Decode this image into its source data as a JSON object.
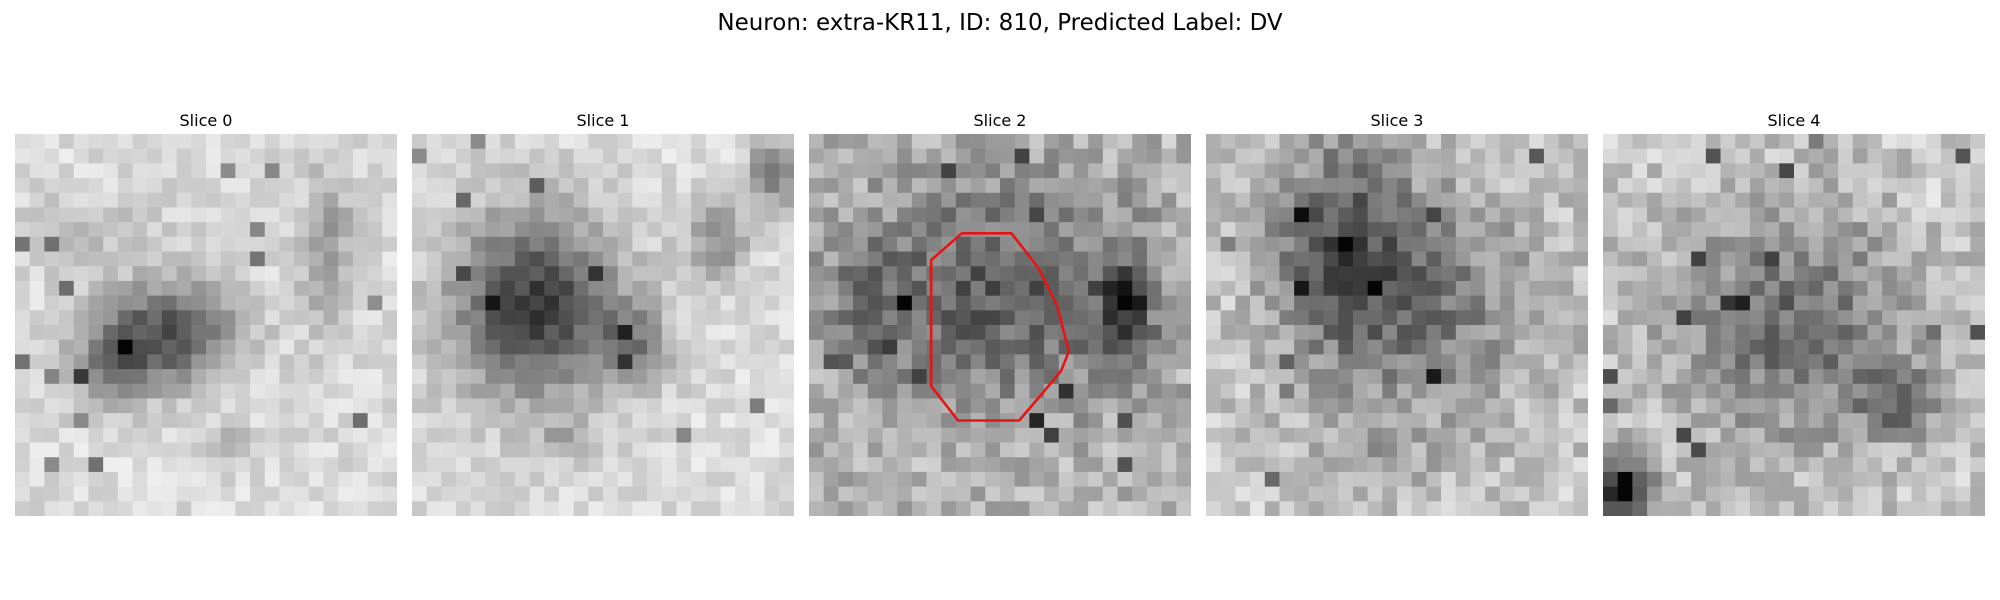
{
  "figure": {
    "title": "Neuron: extra-KR11, ID: 810, Predicted Label: DV"
  },
  "colors": {
    "contour": "#e81414",
    "colormap": "grayscale"
  },
  "image": {
    "grid_cells_per_side": 26
  },
  "slices": [
    {
      "title": "Slice 0",
      "has_contour": false,
      "texture": {
        "seed": 11,
        "base": 0.86,
        "noise": 0.08,
        "blobs": [
          [
            0.4,
            0.52,
            0.18,
            0.13,
            0.55
          ],
          [
            0.25,
            0.62,
            0.12,
            0.1,
            0.3
          ],
          [
            0.82,
            0.3,
            0.07,
            0.22,
            0.25
          ],
          [
            0.55,
            0.82,
            0.06,
            0.05,
            0.25
          ],
          [
            0.2,
            0.25,
            0.2,
            0.1,
            0.1
          ]
        ]
      }
    },
    {
      "title": "Slice 1",
      "has_contour": false,
      "texture": {
        "seed": 23,
        "base": 0.86,
        "noise": 0.08,
        "blobs": [
          [
            0.32,
            0.45,
            0.22,
            0.24,
            0.62
          ],
          [
            0.58,
            0.55,
            0.1,
            0.1,
            0.3
          ],
          [
            0.8,
            0.28,
            0.08,
            0.1,
            0.3
          ],
          [
            0.95,
            0.1,
            0.06,
            0.08,
            0.45
          ],
          [
            0.4,
            0.8,
            0.05,
            0.05,
            0.2
          ]
        ]
      }
    },
    {
      "title": "Slice 2",
      "has_contour": true,
      "contour": [
        [
          0.4,
          0.26
        ],
        [
          0.53,
          0.26
        ],
        [
          0.6,
          0.35
        ],
        [
          0.65,
          0.45
        ],
        [
          0.68,
          0.57
        ],
        [
          0.66,
          0.62
        ],
        [
          0.61,
          0.68
        ],
        [
          0.55,
          0.75
        ],
        [
          0.39,
          0.75
        ],
        [
          0.32,
          0.66
        ],
        [
          0.32,
          0.33
        ]
      ],
      "texture": {
        "seed": 37,
        "base": 0.72,
        "noise": 0.14,
        "blobs": [
          [
            0.5,
            0.42,
            0.38,
            0.3,
            0.35
          ],
          [
            0.83,
            0.45,
            0.07,
            0.12,
            0.45
          ],
          [
            0.15,
            0.45,
            0.1,
            0.18,
            0.2
          ]
        ]
      }
    },
    {
      "title": "Slice 3",
      "has_contour": false,
      "texture": {
        "seed": 51,
        "base": 0.78,
        "noise": 0.13,
        "blobs": [
          [
            0.35,
            0.3,
            0.18,
            0.3,
            0.4
          ],
          [
            0.6,
            0.45,
            0.28,
            0.3,
            0.28
          ],
          [
            0.45,
            0.85,
            0.15,
            0.1,
            0.1
          ]
        ]
      }
    },
    {
      "title": "Slice 4",
      "has_contour": false,
      "texture": {
        "seed": 67,
        "base": 0.78,
        "noise": 0.13,
        "blobs": [
          [
            0.5,
            0.5,
            0.32,
            0.3,
            0.35
          ],
          [
            0.05,
            0.93,
            0.08,
            0.08,
            0.7
          ],
          [
            0.78,
            0.7,
            0.1,
            0.08,
            0.35
          ],
          [
            0.9,
            0.15,
            0.08,
            0.1,
            -0.05
          ]
        ]
      }
    }
  ]
}
